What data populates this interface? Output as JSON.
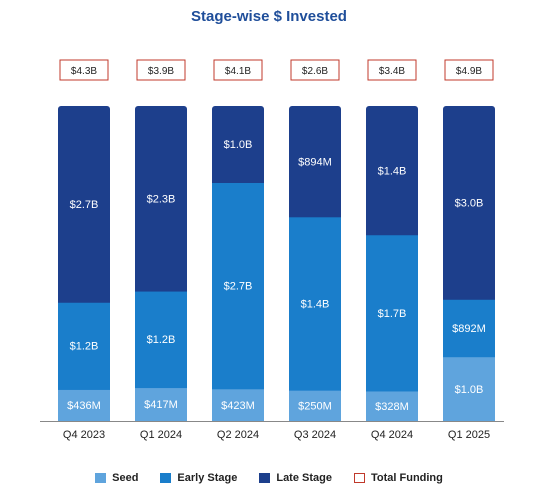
{
  "chart_data": {
    "type": "bar",
    "title": "Stage-wise $ Invested",
    "stacked": true,
    "categories": [
      "Q4 2023",
      "Q1 2024",
      "Q2 2024",
      "Q3 2024",
      "Q4 2024",
      "Q1 2025"
    ],
    "series": [
      {
        "name": "Seed",
        "color": "#5FA4DD",
        "values": [
          0.436,
          0.417,
          0.423,
          0.25,
          0.328,
          1.0
        ],
        "labels": [
          "$436M",
          "$417M",
          "$423M",
          "$250M",
          "$328M",
          "$1.0B"
        ]
      },
      {
        "name": "Early Stage",
        "color": "#1A7ECB",
        "values": [
          1.2,
          1.2,
          2.7,
          1.4,
          1.7,
          0.892
        ],
        "labels": [
          "$1.2B",
          "$1.2B",
          "$2.7B",
          "$1.4B",
          "$1.7B",
          "$892M"
        ]
      },
      {
        "name": "Late Stage",
        "color": "#1D3F8C",
        "values": [
          2.7,
          2.3,
          1.0,
          0.894,
          1.4,
          3.0
        ],
        "labels": [
          "$2.7B",
          "$2.3B",
          "$1.0B",
          "$894M",
          "$1.4B",
          "$3.0B"
        ]
      }
    ],
    "total_funding": {
      "name": "Total Funding",
      "border_color": "#C0392B",
      "values": [
        4.3,
        3.9,
        4.1,
        2.6,
        3.4,
        4.9
      ],
      "labels": [
        "$4.3B",
        "$3.9B",
        "$4.1B",
        "$2.6B",
        "$3.4B",
        "$4.9B"
      ]
    },
    "bars_normalized_to_100_percent": true,
    "legend_position": "bottom",
    "grid": false,
    "xlabel": "",
    "ylabel": ""
  },
  "title_color": "#1F4E9A"
}
